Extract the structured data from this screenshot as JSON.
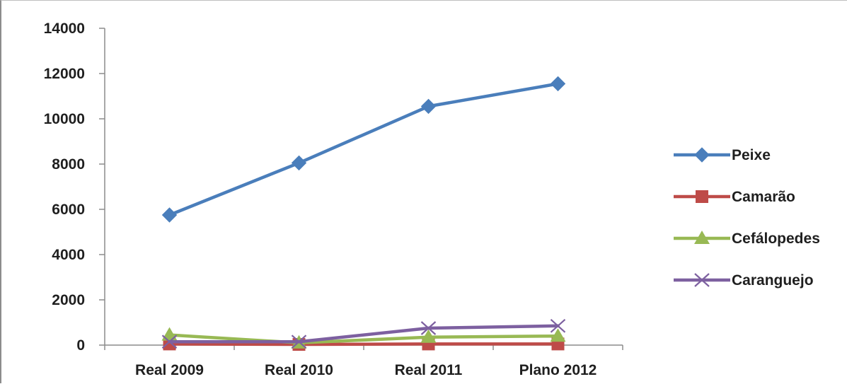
{
  "chart_data": {
    "type": "line",
    "categories": [
      "Real 2009",
      "Real 2010",
      "Real 2011",
      "Plano 2012"
    ],
    "ylim": [
      0,
      14000
    ],
    "y_ticks": [
      0,
      2000,
      4000,
      6000,
      8000,
      10000,
      12000,
      14000
    ],
    "grid": false,
    "legend_position": "right",
    "series": [
      {
        "name": "Peixe",
        "color": "#4a7ebb",
        "marker": "diamond",
        "values": [
          5750,
          8050,
          10550,
          11550
        ]
      },
      {
        "name": "Camarão",
        "color": "#be4b48",
        "marker": "square",
        "values": [
          50,
          30,
          50,
          50
        ]
      },
      {
        "name": "Cefálopedes",
        "color": "#98b954",
        "marker": "triangle",
        "values": [
          450,
          100,
          350,
          400
        ]
      },
      {
        "name": "Caranguejo",
        "color": "#7d60a0",
        "marker": "x",
        "values": [
          150,
          150,
          750,
          850
        ]
      }
    ]
  }
}
